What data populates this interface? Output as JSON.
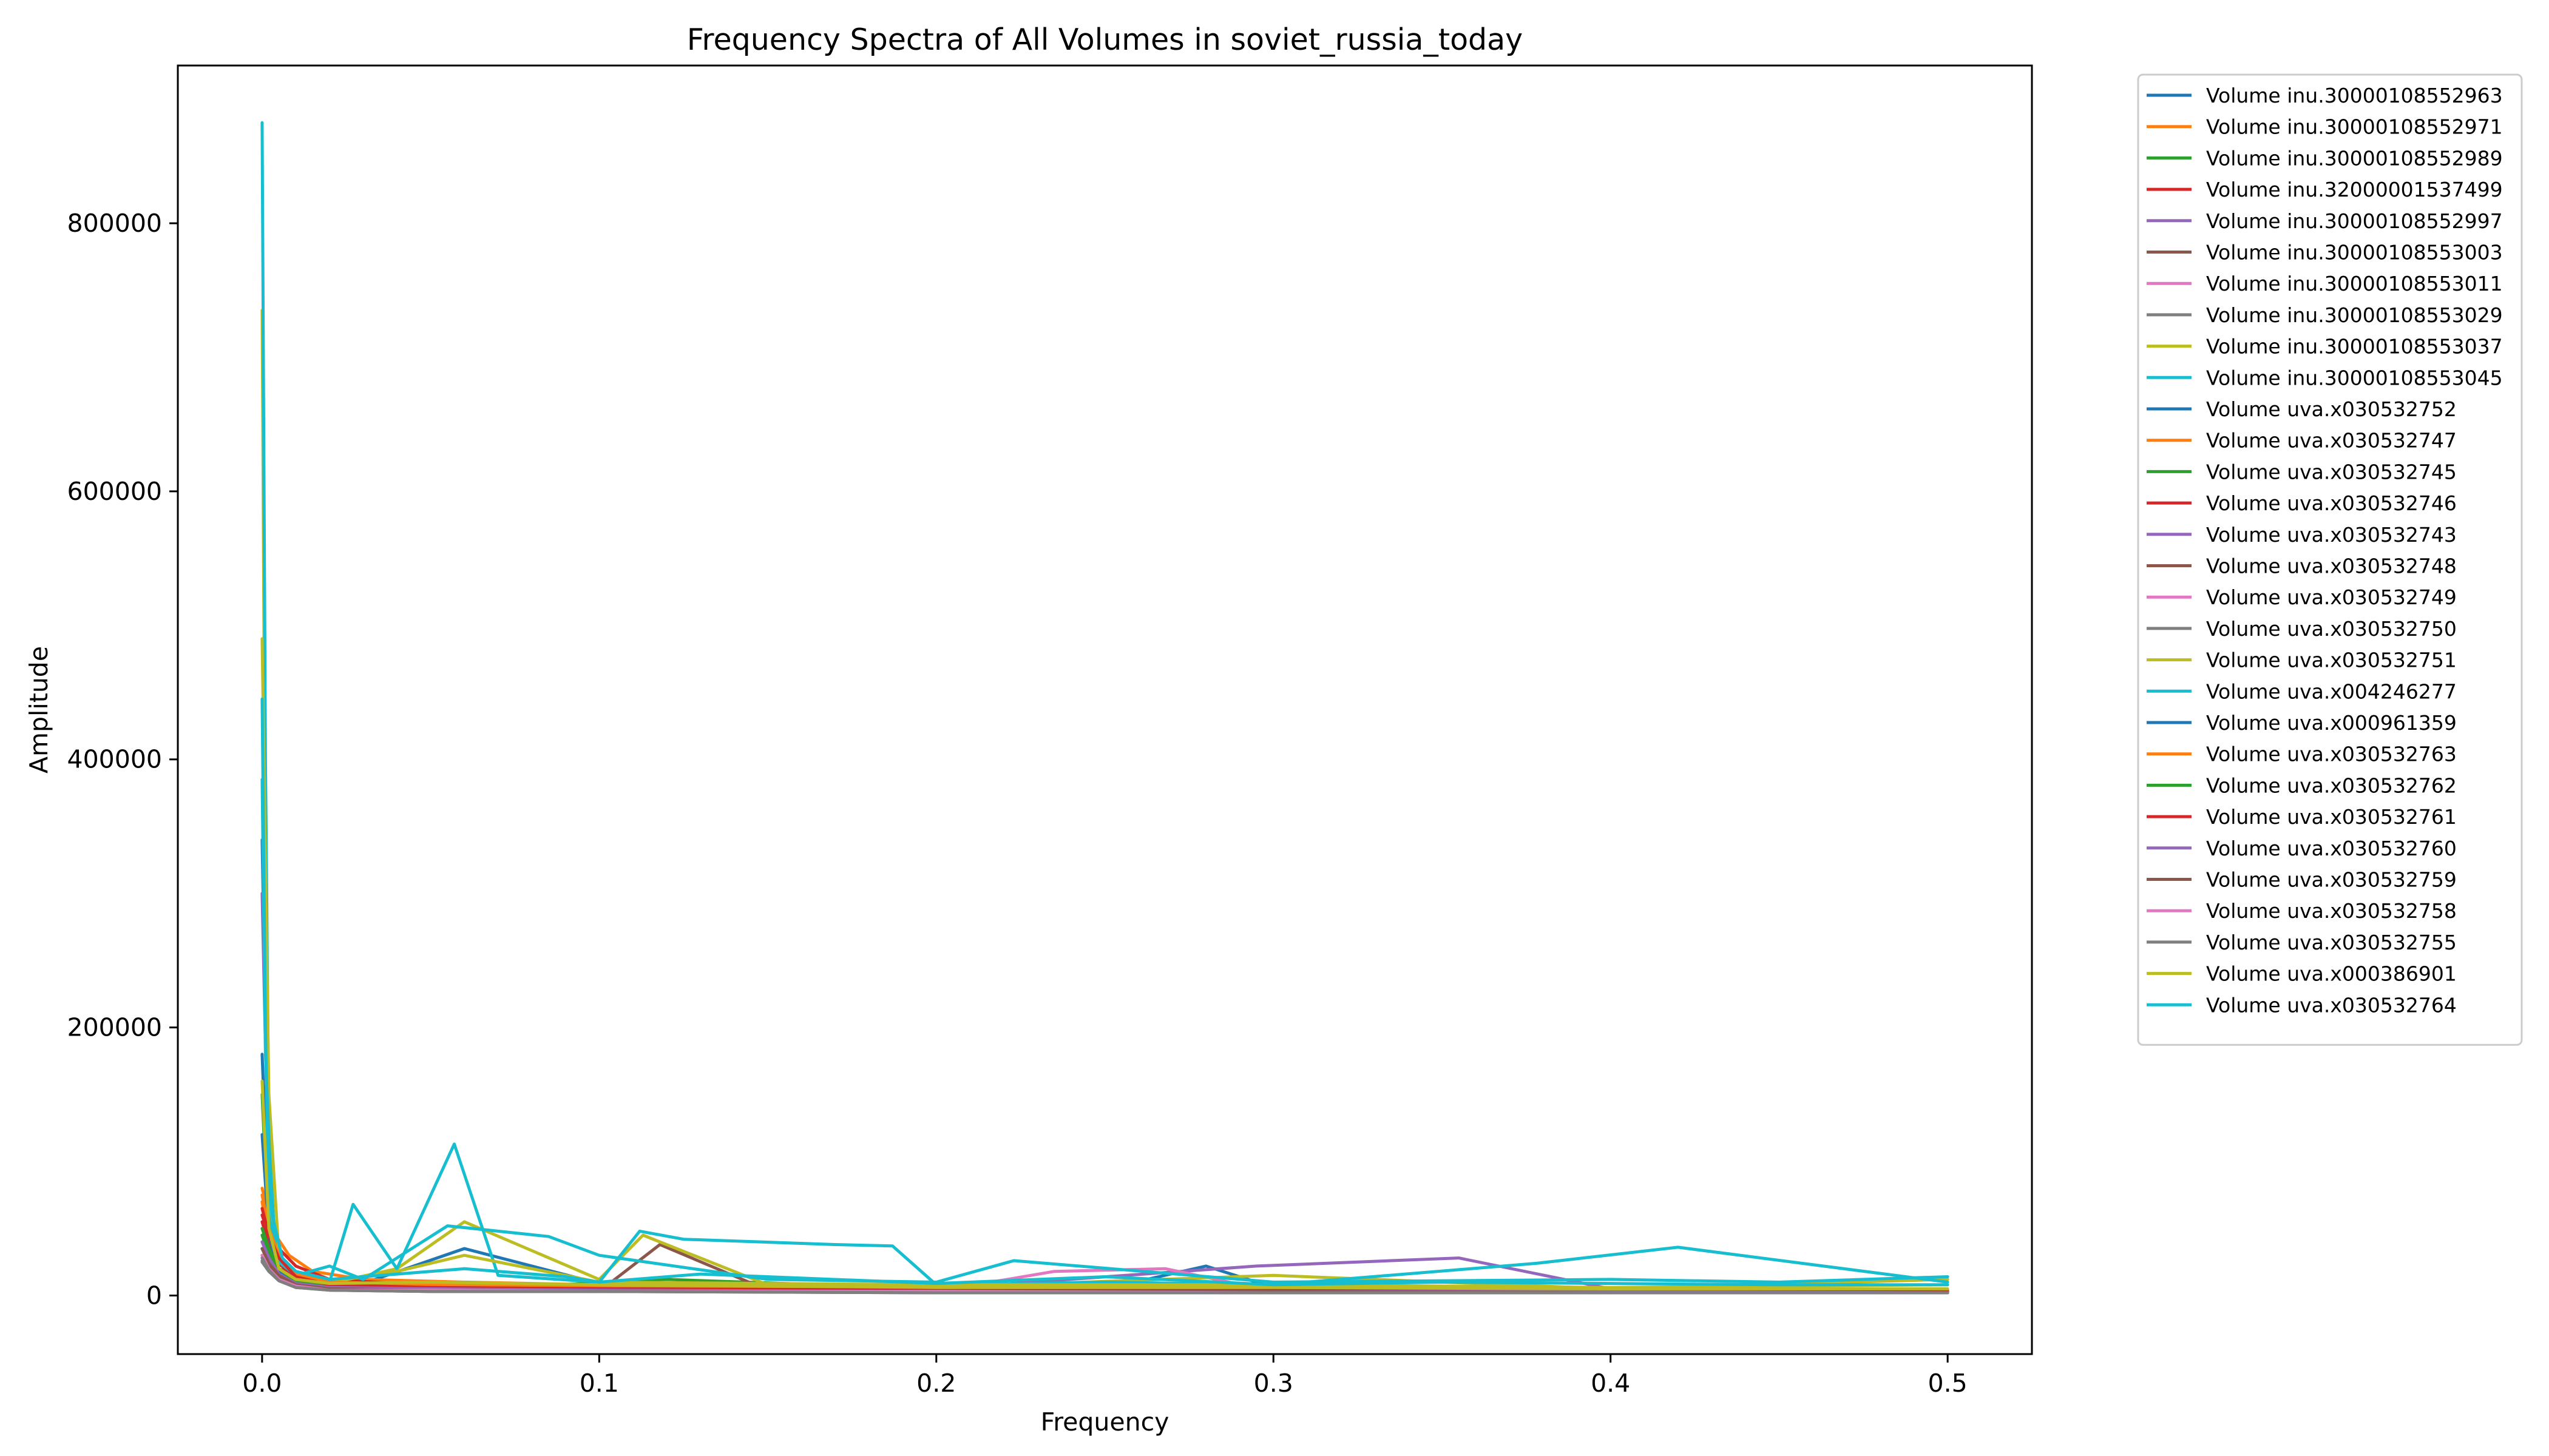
{
  "chart_data": {
    "type": "line",
    "title": "Frequency Spectra of All Volumes in soviet_russia_today",
    "xlabel": "Frequency",
    "ylabel": "Amplitude",
    "xlim": [
      -0.025,
      0.525
    ],
    "ylim": [
      -43700,
      917700
    ],
    "xticks": [
      0.0,
      0.1,
      0.2,
      0.3,
      0.4,
      0.5
    ],
    "xtick_labels": [
      "0.0",
      "0.1",
      "0.2",
      "0.3",
      "0.4",
      "0.5"
    ],
    "yticks": [
      0,
      200000,
      400000,
      600000,
      800000
    ],
    "ytick_labels": [
      "0",
      "200000",
      "400000",
      "600000",
      "800000"
    ],
    "grid": false,
    "legend_position": "outside-right",
    "series": [
      {
        "name": "Volume inu.30000108552963",
        "color": "#1f77b4",
        "x": [
          0.0,
          0.002,
          0.004,
          0.008,
          0.015,
          0.03,
          0.06,
          0.1,
          0.15,
          0.2,
          0.25,
          0.28,
          0.3,
          0.35,
          0.4,
          0.45,
          0.5
        ],
        "y": [
          340000,
          60000,
          22000,
          14000,
          11000,
          9000,
          35000,
          9000,
          7000,
          6000,
          5000,
          22000,
          6000,
          5000,
          4000,
          4000,
          3000
        ]
      },
      {
        "name": "Volume inu.30000108552971",
        "color": "#ff7f0e",
        "x": [
          0.0,
          0.002,
          0.004,
          0.008,
          0.015,
          0.03,
          0.06,
          0.1,
          0.15,
          0.2,
          0.25,
          0.3,
          0.35,
          0.4,
          0.45,
          0.5
        ],
        "y": [
          80000,
          60000,
          45000,
          30000,
          18000,
          12000,
          10000,
          8000,
          7000,
          6000,
          5000,
          5000,
          4000,
          4000,
          4000,
          3000
        ]
      },
      {
        "name": "Volume inu.30000108552989",
        "color": "#2ca02c",
        "x": [
          0.0,
          0.002,
          0.005,
          0.01,
          0.02,
          0.04,
          0.08,
          0.12,
          0.2,
          0.3,
          0.4,
          0.5
        ],
        "y": [
          150000,
          40000,
          20000,
          14000,
          10000,
          8000,
          7000,
          12000,
          5000,
          5000,
          4000,
          4000
        ]
      },
      {
        "name": "Volume inu.32000001537499",
        "color": "#d62728",
        "x": [
          0.0,
          0.002,
          0.005,
          0.01,
          0.02,
          0.04,
          0.08,
          0.12,
          0.2,
          0.3,
          0.4,
          0.5
        ],
        "y": [
          60000,
          45000,
          35000,
          22000,
          12000,
          9000,
          8000,
          7000,
          6000,
          5000,
          5000,
          4000
        ]
      },
      {
        "name": "Volume inu.30000108552997",
        "color": "#9467bd",
        "x": [
          0.0,
          0.002,
          0.005,
          0.01,
          0.02,
          0.04,
          0.08,
          0.12,
          0.2,
          0.295,
          0.355,
          0.4,
          0.5
        ],
        "y": [
          300000,
          70000,
          25000,
          15000,
          10000,
          8000,
          7000,
          6000,
          5000,
          22000,
          28000,
          5000,
          4000
        ]
      },
      {
        "name": "Volume inu.30000108553003",
        "color": "#8c564b",
        "x": [
          0.0,
          0.002,
          0.005,
          0.01,
          0.02,
          0.05,
          0.1,
          0.118,
          0.15,
          0.2,
          0.3,
          0.4,
          0.5
        ],
        "y": [
          40000,
          30000,
          20000,
          10000,
          6000,
          4000,
          3000,
          38000,
          4000,
          3000,
          3000,
          2000,
          2000
        ]
      },
      {
        "name": "Volume inu.30000108553011",
        "color": "#e377c2",
        "x": [
          0.0,
          0.002,
          0.005,
          0.01,
          0.02,
          0.05,
          0.1,
          0.15,
          0.2,
          0.235,
          0.268,
          0.3,
          0.4,
          0.5
        ],
        "y": [
          30000,
          22000,
          14000,
          8000,
          5000,
          4000,
          4000,
          4000,
          3000,
          18000,
          20000,
          3000,
          3000,
          2000
        ]
      },
      {
        "name": "Volume inu.30000108553029",
        "color": "#7f7f7f",
        "x": [
          0.0,
          0.002,
          0.005,
          0.01,
          0.02,
          0.05,
          0.1,
          0.15,
          0.2,
          0.3,
          0.4,
          0.5
        ],
        "y": [
          25000,
          18000,
          12000,
          7000,
          5000,
          4000,
          4000,
          3000,
          3000,
          3000,
          2000,
          2000
        ]
      },
      {
        "name": "Volume inu.30000108553037",
        "color": "#bcbd22",
        "x": [
          0.0,
          0.001,
          0.002,
          0.004,
          0.008,
          0.02,
          0.04,
          0.06,
          0.1,
          0.113,
          0.15,
          0.2,
          0.3,
          0.4,
          0.5
        ],
        "y": [
          735000,
          300000,
          80000,
          20000,
          12000,
          9000,
          20000,
          55000,
          12000,
          45000,
          8000,
          6000,
          15000,
          5000,
          12000
        ]
      },
      {
        "name": "Volume inu.30000108553045",
        "color": "#17becf",
        "x": [
          0.0,
          0.001,
          0.002,
          0.004,
          0.008,
          0.02,
          0.027,
          0.04,
          0.057,
          0.07,
          0.1,
          0.112,
          0.125,
          0.17,
          0.187,
          0.2,
          0.25,
          0.3,
          0.378,
          0.42,
          0.5
        ],
        "y": [
          875000,
          400000,
          120000,
          30000,
          15000,
          10000,
          68000,
          20000,
          113000,
          15000,
          10000,
          48000,
          42000,
          38000,
          37000,
          8000,
          10000,
          8000,
          24000,
          36000,
          10000
        ]
      },
      {
        "name": "Volume uva.x030532752",
        "color": "#1f77b4",
        "x": [
          0.0,
          0.002,
          0.005,
          0.01,
          0.02,
          0.05,
          0.1,
          0.2,
          0.3,
          0.4,
          0.5
        ],
        "y": [
          180000,
          50000,
          20000,
          12000,
          9000,
          8000,
          7000,
          6000,
          5000,
          5000,
          4000
        ]
      },
      {
        "name": "Volume uva.x030532747",
        "color": "#ff7f0e",
        "x": [
          0.0,
          0.002,
          0.005,
          0.01,
          0.02,
          0.05,
          0.1,
          0.2,
          0.3,
          0.4,
          0.5
        ],
        "y": [
          70000,
          40000,
          25000,
          14000,
          9000,
          7000,
          6000,
          5000,
          5000,
          4000,
          4000
        ]
      },
      {
        "name": "Volume uva.x030532745",
        "color": "#2ca02c",
        "x": [
          0.0,
          0.002,
          0.005,
          0.01,
          0.02,
          0.05,
          0.1,
          0.2,
          0.3,
          0.4,
          0.5
        ],
        "y": [
          45000,
          30000,
          18000,
          10000,
          7000,
          6000,
          5000,
          4000,
          4000,
          3000,
          3000
        ]
      },
      {
        "name": "Volume uva.x030532746",
        "color": "#d62728",
        "x": [
          0.0,
          0.002,
          0.005,
          0.01,
          0.02,
          0.05,
          0.1,
          0.2,
          0.3,
          0.4,
          0.5
        ],
        "y": [
          55000,
          38000,
          24000,
          12000,
          8000,
          6000,
          5000,
          4000,
          4000,
          3000,
          3000
        ]
      },
      {
        "name": "Volume uva.x030532743",
        "color": "#9467bd",
        "x": [
          0.0,
          0.002,
          0.005,
          0.01,
          0.02,
          0.05,
          0.1,
          0.2,
          0.3,
          0.4,
          0.5
        ],
        "y": [
          35000,
          25000,
          15000,
          8000,
          5000,
          4000,
          4000,
          3000,
          3000,
          3000,
          2000
        ]
      },
      {
        "name": "Volume uva.x030532748",
        "color": "#8c564b",
        "x": [
          0.0,
          0.002,
          0.005,
          0.01,
          0.02,
          0.05,
          0.1,
          0.2,
          0.3,
          0.4,
          0.5
        ],
        "y": [
          30000,
          22000,
          14000,
          7000,
          4000,
          3000,
          3000,
          2000,
          2000,
          2000,
          2000
        ]
      },
      {
        "name": "Volume uva.x030532749",
        "color": "#e377c2",
        "x": [
          0.0,
          0.002,
          0.005,
          0.01,
          0.02,
          0.05,
          0.1,
          0.2,
          0.3,
          0.4,
          0.5
        ],
        "y": [
          28000,
          20000,
          12000,
          7000,
          5000,
          4000,
          3000,
          3000,
          3000,
          2000,
          2000
        ]
      },
      {
        "name": "Volume uva.x030532750",
        "color": "#7f7f7f",
        "x": [
          0.0,
          0.002,
          0.005,
          0.01,
          0.02,
          0.05,
          0.1,
          0.2,
          0.3,
          0.4,
          0.5
        ],
        "y": [
          26000,
          18000,
          11000,
          6000,
          4000,
          3000,
          3000,
          3000,
          2000,
          2000,
          2000
        ]
      },
      {
        "name": "Volume uva.x030532751",
        "color": "#bcbd22",
        "x": [
          0.0,
          0.002,
          0.005,
          0.01,
          0.02,
          0.04,
          0.06,
          0.1,
          0.2,
          0.3,
          0.4,
          0.5
        ],
        "y": [
          490000,
          150000,
          30000,
          14000,
          10000,
          18000,
          30000,
          10000,
          8000,
          8000,
          6000,
          8000
        ]
      },
      {
        "name": "Volume uva.x004246277",
        "color": "#17becf",
        "x": [
          0.0,
          0.001,
          0.002,
          0.005,
          0.01,
          0.02,
          0.03,
          0.055,
          0.085,
          0.1,
          0.15,
          0.2,
          0.223,
          0.3,
          0.4,
          0.45,
          0.5
        ],
        "y": [
          445000,
          200000,
          60000,
          25000,
          15000,
          22000,
          12000,
          52000,
          44000,
          30000,
          12000,
          10000,
          26000,
          10000,
          12000,
          10000,
          14000
        ]
      },
      {
        "name": "Volume uva.x000961359",
        "color": "#1f77b4",
        "x": [
          0.0,
          0.002,
          0.005,
          0.01,
          0.02,
          0.05,
          0.1,
          0.2,
          0.3,
          0.4,
          0.5
        ],
        "y": [
          120000,
          45000,
          18000,
          11000,
          8000,
          7000,
          6000,
          5000,
          5000,
          4000,
          4000
        ]
      },
      {
        "name": "Volume uva.x030532763",
        "color": "#ff7f0e",
        "x": [
          0.0,
          0.002,
          0.005,
          0.01,
          0.02,
          0.05,
          0.1,
          0.2,
          0.3,
          0.4,
          0.5
        ],
        "y": [
          75000,
          50000,
          30000,
          16000,
          10000,
          8000,
          6000,
          5000,
          5000,
          4000,
          4000
        ]
      },
      {
        "name": "Volume uva.x030532762",
        "color": "#2ca02c",
        "x": [
          0.0,
          0.002,
          0.005,
          0.01,
          0.02,
          0.05,
          0.1,
          0.2,
          0.3,
          0.4,
          0.5
        ],
        "y": [
          50000,
          35000,
          20000,
          11000,
          7000,
          6000,
          5000,
          4000,
          4000,
          3000,
          3000
        ]
      },
      {
        "name": "Volume uva.x030532761",
        "color": "#d62728",
        "x": [
          0.0,
          0.002,
          0.005,
          0.01,
          0.02,
          0.05,
          0.1,
          0.2,
          0.3,
          0.4,
          0.5
        ],
        "y": [
          65000,
          45000,
          28000,
          14000,
          8000,
          6000,
          5000,
          4000,
          4000,
          3000,
          3000
        ]
      },
      {
        "name": "Volume uva.x030532760",
        "color": "#9467bd",
        "x": [
          0.0,
          0.002,
          0.005,
          0.01,
          0.02,
          0.05,
          0.1,
          0.2,
          0.3,
          0.4,
          0.5
        ],
        "y": [
          40000,
          28000,
          16000,
          9000,
          6000,
          5000,
          4000,
          3000,
          3000,
          3000,
          2000
        ]
      },
      {
        "name": "Volume uva.x030532759",
        "color": "#8c564b",
        "x": [
          0.0,
          0.002,
          0.005,
          0.01,
          0.02,
          0.05,
          0.1,
          0.2,
          0.3,
          0.4,
          0.5
        ],
        "y": [
          35000,
          24000,
          15000,
          8000,
          5000,
          4000,
          3000,
          3000,
          3000,
          2000,
          2000
        ]
      },
      {
        "name": "Volume uva.x030532758",
        "color": "#e377c2",
        "x": [
          0.0,
          0.002,
          0.005,
          0.01,
          0.02,
          0.05,
          0.1,
          0.2,
          0.3,
          0.4,
          0.5
        ],
        "y": [
          30000,
          20000,
          12000,
          7000,
          4000,
          4000,
          3000,
          3000,
          2000,
          2000,
          2000
        ]
      },
      {
        "name": "Volume uva.x030532755",
        "color": "#7f7f7f",
        "x": [
          0.0,
          0.002,
          0.005,
          0.01,
          0.02,
          0.05,
          0.1,
          0.2,
          0.3,
          0.4,
          0.5
        ],
        "y": [
          28000,
          19000,
          11000,
          6000,
          4000,
          3000,
          3000,
          2000,
          2000,
          2000,
          2000
        ]
      },
      {
        "name": "Volume uva.x000386901",
        "color": "#bcbd22",
        "x": [
          0.0,
          0.002,
          0.005,
          0.01,
          0.02,
          0.05,
          0.1,
          0.2,
          0.3,
          0.4,
          0.5
        ],
        "y": [
          160000,
          50000,
          20000,
          12000,
          9000,
          10000,
          8000,
          6000,
          6000,
          5000,
          5000
        ]
      },
      {
        "name": "Volume uva.x030532764",
        "color": "#17becf",
        "x": [
          0.0,
          0.001,
          0.003,
          0.006,
          0.01,
          0.02,
          0.04,
          0.06,
          0.09,
          0.1,
          0.13,
          0.2,
          0.25,
          0.3,
          0.35,
          0.4,
          0.45,
          0.5
        ],
        "y": [
          385000,
          180000,
          60000,
          28000,
          18000,
          12000,
          16000,
          20000,
          14000,
          10000,
          16000,
          9000,
          14000,
          8000,
          10000,
          9000,
          8000,
          8000
        ]
      }
    ]
  }
}
